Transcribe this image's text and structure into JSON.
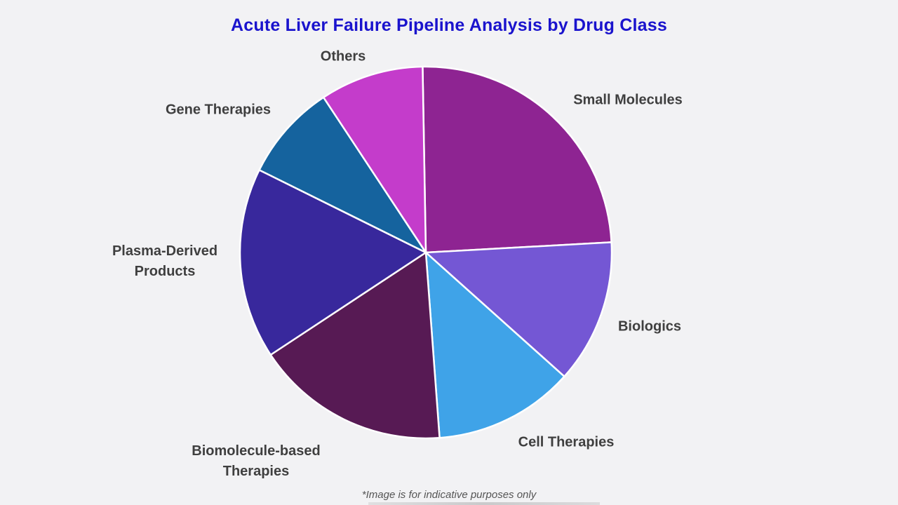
{
  "title": {
    "text": "Acute Liver Failure Pipeline Analysis by Drug Class",
    "color": "#1a13cd"
  },
  "footnote": "*Image is for indicative purposes only",
  "label_color": "#3f3f3f",
  "background_color": "#f2f2f4",
  "chart_data": {
    "type": "pie",
    "title": "Acute Liver Failure Pipeline Analysis by Drug Class",
    "legend_position": "none",
    "labels_outside": true,
    "direction": "clockwise",
    "start_angle_deg": -1,
    "units": "percent (estimated from slice angles)",
    "segments": [
      {
        "label": "Small Molecules",
        "value": 24.4,
        "color": "#8e2492"
      },
      {
        "label": "Biologics",
        "value": 12.5,
        "color": "#7457d4"
      },
      {
        "label": "Cell Therapies",
        "value": 12.2,
        "color": "#3fa3e8"
      },
      {
        "label": "Biomolecule-based Therapies",
        "value": 16.9,
        "color": "#571a54"
      },
      {
        "label": "Plasma-Derived Products",
        "value": 16.6,
        "color": "#38289c"
      },
      {
        "label": "Gene Therapies",
        "value": 8.4,
        "color": "#15639e"
      },
      {
        "label": "Others",
        "value": 9.0,
        "color": "#c43ccb"
      }
    ]
  }
}
